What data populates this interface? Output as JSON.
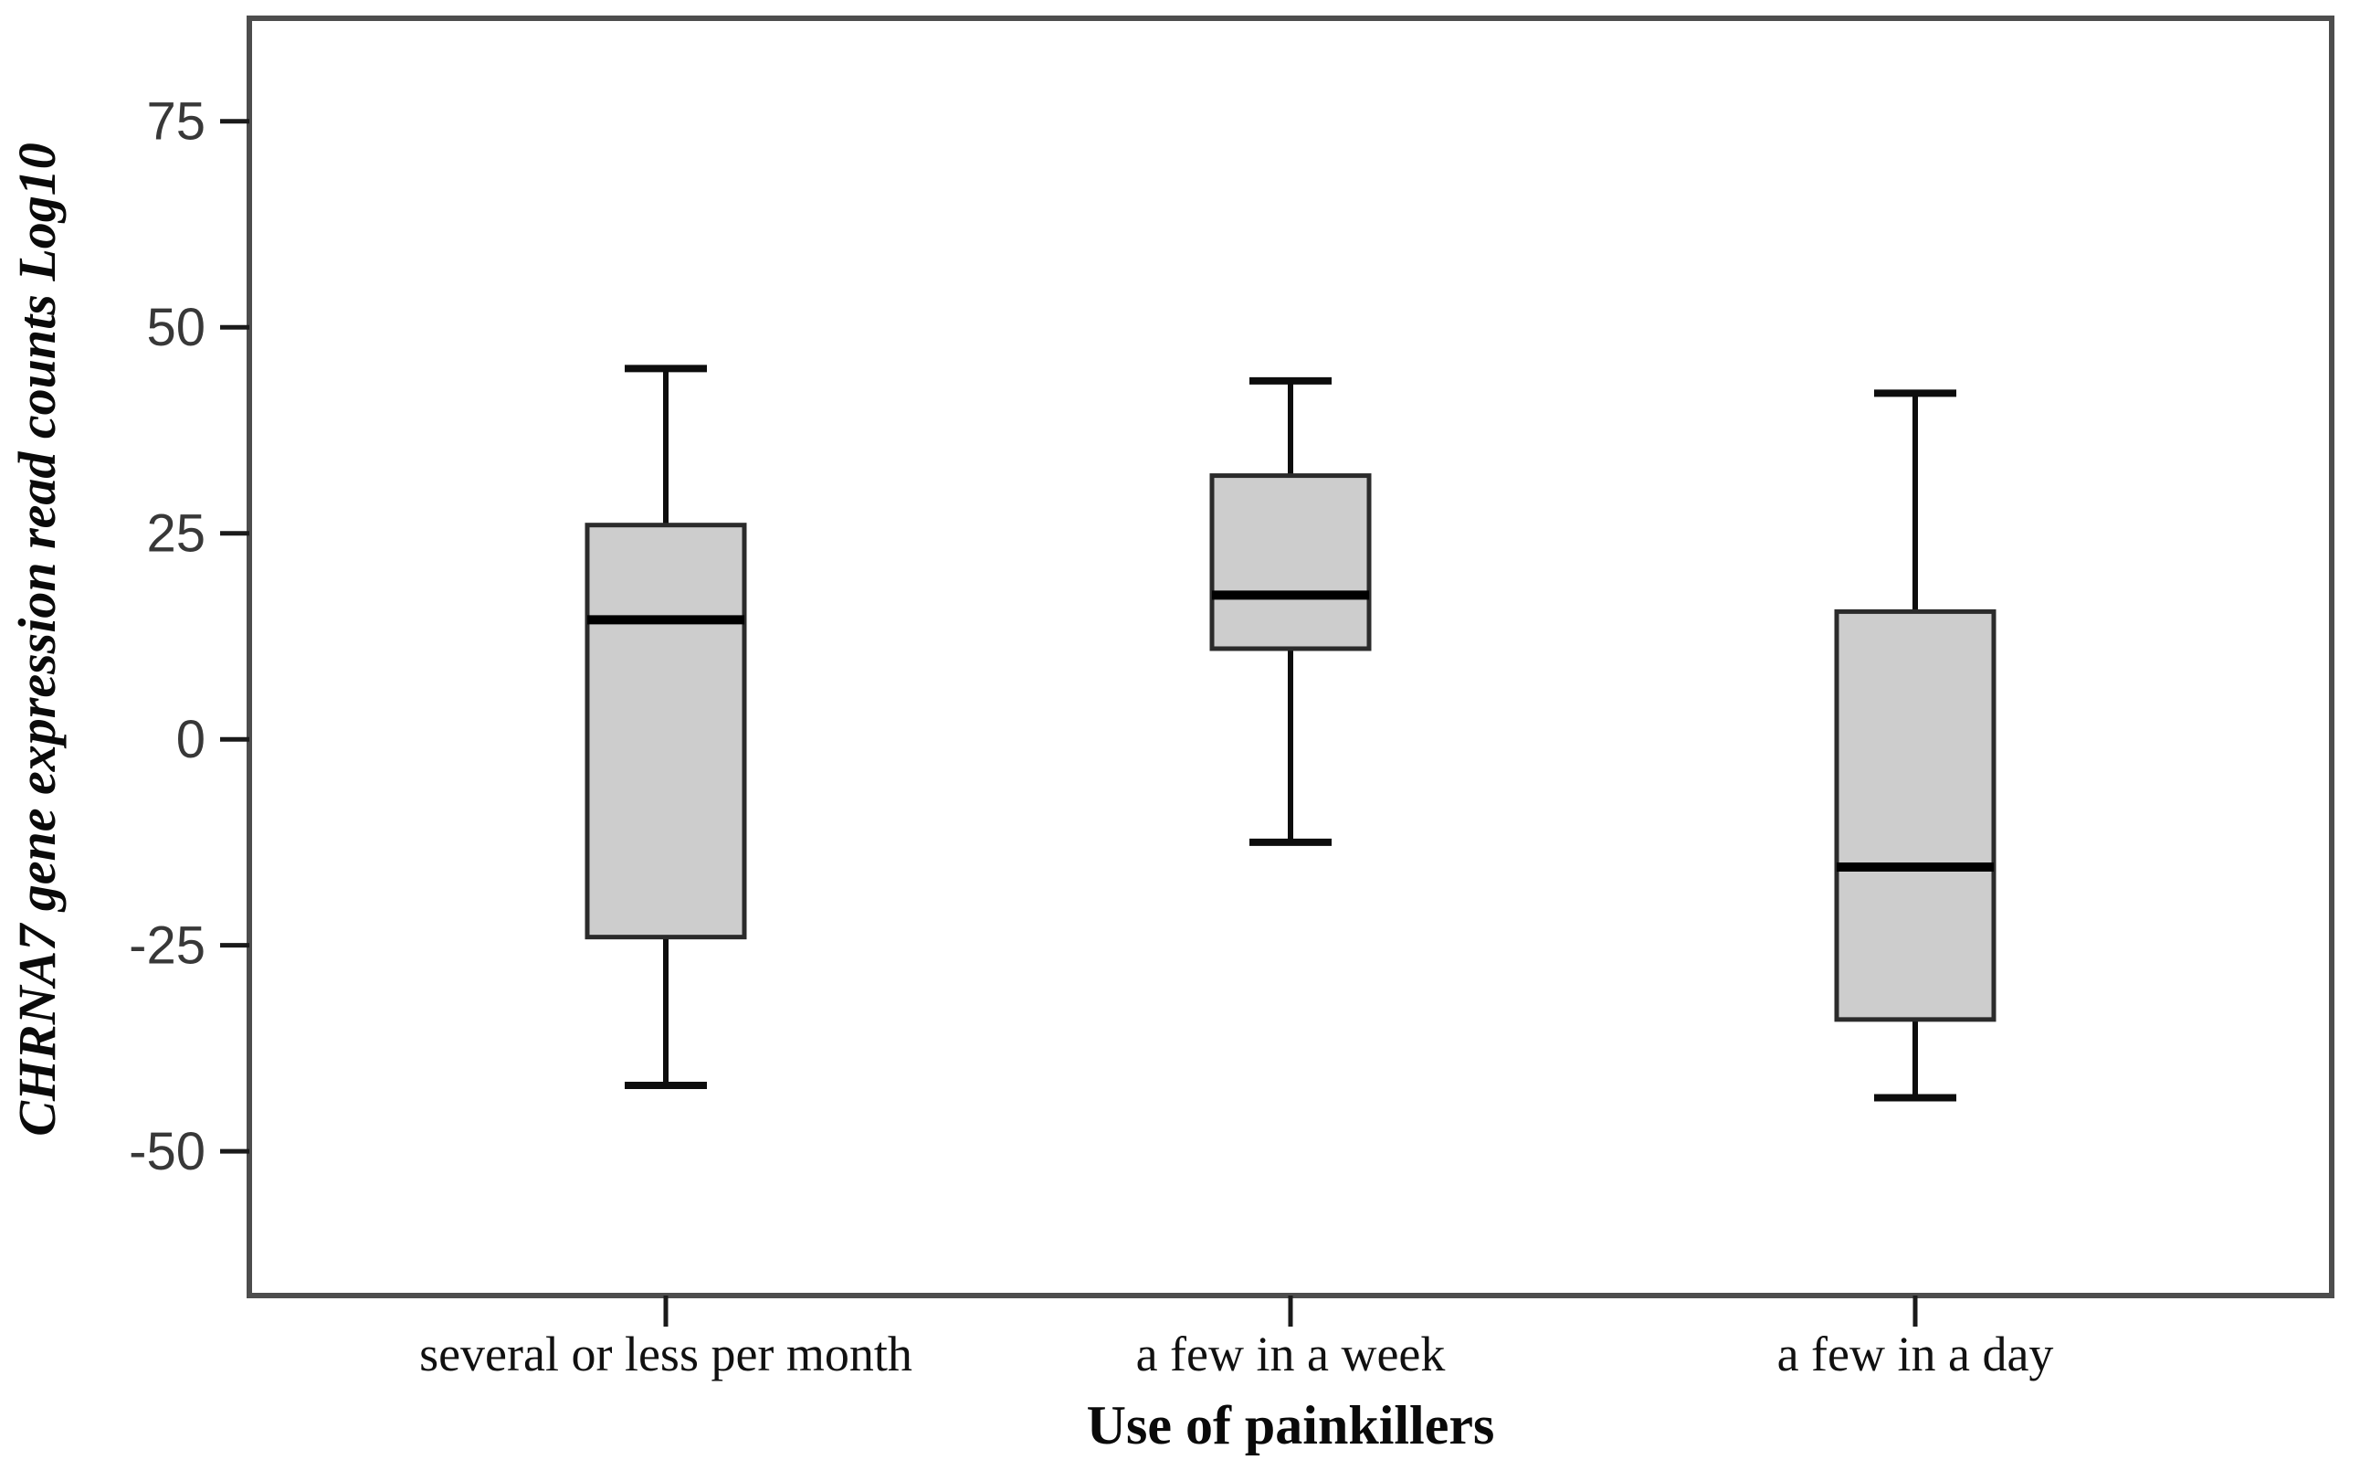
{
  "chart_data": {
    "type": "boxplot",
    "title": "",
    "ylabel": "CHRNA7 gene expression read counts Log10",
    "xlabel": "Use of painkillers",
    "categories": [
      "several or less per month",
      "a few in a week",
      "a few in a day"
    ],
    "yticks": [
      75,
      50,
      25,
      0,
      -25,
      -50
    ],
    "ylim": [
      -67.5,
      87.5
    ],
    "grid": false,
    "legend": "none",
    "series": [
      {
        "name": "several or less per month",
        "whisker_low": -42,
        "q1": -24,
        "median": 14.5,
        "q3": 26,
        "whisker_high": 45
      },
      {
        "name": "a few in a week",
        "whisker_low": -12.5,
        "q1": 11,
        "median": 17.5,
        "q3": 32,
        "whisker_high": 43.5
      },
      {
        "name": "a few in a day",
        "whisker_low": -43.5,
        "q1": -34,
        "median": -15.5,
        "q3": 15.5,
        "whisker_high": 42
      }
    ],
    "colors": {
      "background": "#ffffff",
      "box_fill": "#cdcdcd",
      "box_border": "#2b2b2b",
      "median": "#000000",
      "whisker": "#0d0d0d",
      "frame": "#4d4d4d",
      "tick": "#1a1a1a",
      "tick_label": "#383838"
    }
  }
}
